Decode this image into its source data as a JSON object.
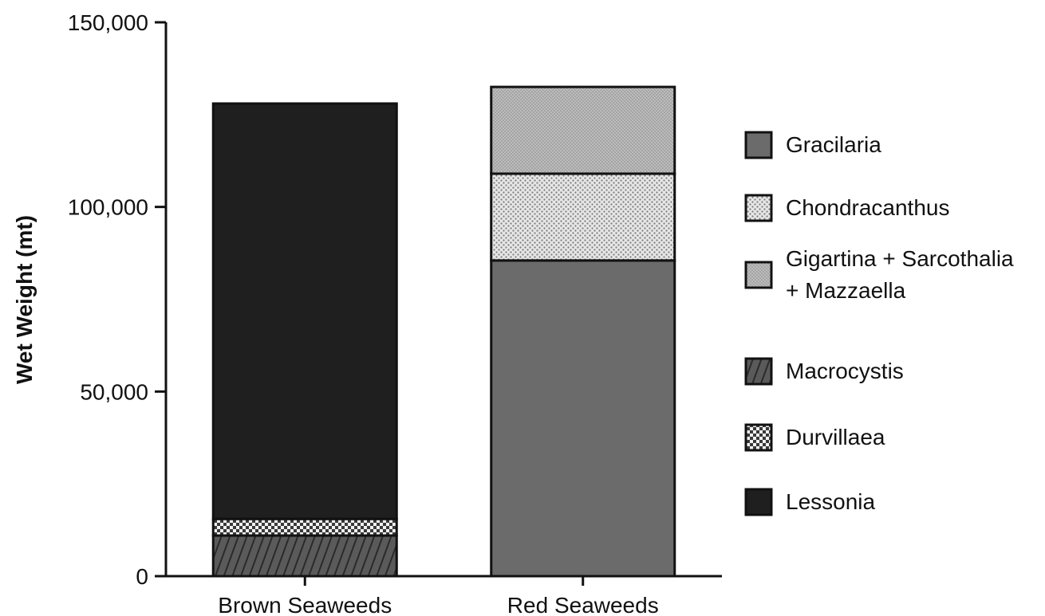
{
  "chart_data": {
    "type": "bar",
    "stacked": true,
    "categories": [
      "Brown Seaweeds",
      "Red Seaweeds"
    ],
    "ylabel": "Wet Weight (mt)",
    "xlabel": "",
    "ylim": [
      0,
      150000
    ],
    "yticks": [
      0,
      50000,
      100000,
      150000
    ],
    "ytick_labels": [
      "0",
      "50,000",
      "100,000",
      "150,000"
    ],
    "grid": false,
    "legend_position": "right",
    "series": [
      {
        "name": "Gracilaria",
        "values": [
          0,
          85500
        ],
        "color": "#6b6b6b",
        "pattern": "solid"
      },
      {
        "name": "Chondracanthus",
        "values": [
          0,
          23500
        ],
        "color": "#dcdcdc",
        "pattern": "dots"
      },
      {
        "name": "Gigartina + Sarcothalia + Mazzaella",
        "legend_lines": [
          "Gigartina + Sarcothalia",
          "+ Mazzaella"
        ],
        "values": [
          0,
          23500
        ],
        "color": "#b4b4b4",
        "pattern": "fine"
      },
      {
        "name": "Macrocystis",
        "values": [
          11000,
          0
        ],
        "color": "#5a5a5a",
        "pattern": "stripes"
      },
      {
        "name": "Durvillaea",
        "values": [
          4500,
          0
        ],
        "color": "#c8c8c8",
        "pattern": "checker"
      },
      {
        "name": "Lessonia",
        "values": [
          112500,
          0
        ],
        "color": "#1f1f1f",
        "pattern": "solid"
      }
    ]
  }
}
